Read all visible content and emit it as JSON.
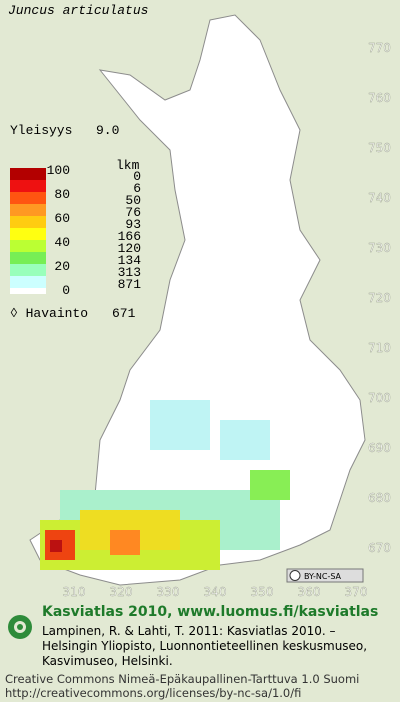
{
  "title": "Juncus articulatus",
  "frequency": {
    "label": "Yleisyys",
    "value": "9.0"
  },
  "legend": {
    "scale_labels": [
      "100",
      "80",
      "60",
      "40",
      "20",
      "0"
    ],
    "count_header": "lkm",
    "counts": [
      "0",
      "6",
      "50",
      "76",
      "93",
      "166",
      "120",
      "134",
      "313",
      "871"
    ],
    "observations": {
      "label": "Havainto",
      "value": "671"
    }
  },
  "axes": {
    "y_labels": [
      "770",
      "760",
      "750",
      "740",
      "730",
      "720",
      "710",
      "700",
      "690",
      "680",
      "670"
    ],
    "x_labels": [
      "310",
      "320",
      "330",
      "340",
      "350",
      "360",
      "370"
    ]
  },
  "license_badge": "BY-NC-SA",
  "footer": {
    "heading": "Kasviatlas 2010, www.luomus.fi/kasviatlas",
    "citation": [
      "Lampinen, R. & Lahti, T. 2011: Kasviatlas 2010. –",
      "Helsingin Yliopisto, Luonnontieteellinen keskusmuseo,",
      "Kasvimuseo, Helsinki."
    ],
    "license": [
      "Creative Commons Nimeä-Epäkaupallinen-Tarttuva 1.0 Suomi",
      "http://creativecommons.org/licenses/by-nc-sa/1.0/fi"
    ]
  }
}
